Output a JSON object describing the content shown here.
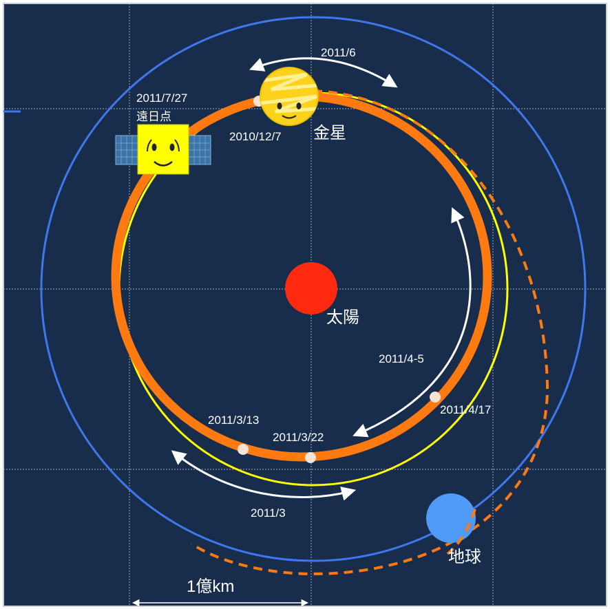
{
  "labels": {
    "sun": "太陽",
    "venus": "金星",
    "earth": "地球",
    "aphelion_date": "2011/7/27",
    "aphelion": "遠日点",
    "insertion_date": "2010/12/7",
    "arc_june": "2011/6",
    "arc_apr_may": "2011/4-5",
    "pt_apr17": "2011/4/17",
    "pt_mar13": "2011/3/13",
    "pt_mar22": "2011/3/22",
    "arc_march": "2011/3",
    "scale": "1億km"
  },
  "colors": {
    "background": "#172d4b",
    "sun": "#ff2a10",
    "earth": "#4f9af7",
    "earth_orbit": "#3f78ec",
    "venus_orbit": "#ffff00",
    "probe_orbit": "#ff7a10",
    "arrow": "#ffffff",
    "point": "#f7e2d6",
    "grid": "#b9c3cf"
  }
}
